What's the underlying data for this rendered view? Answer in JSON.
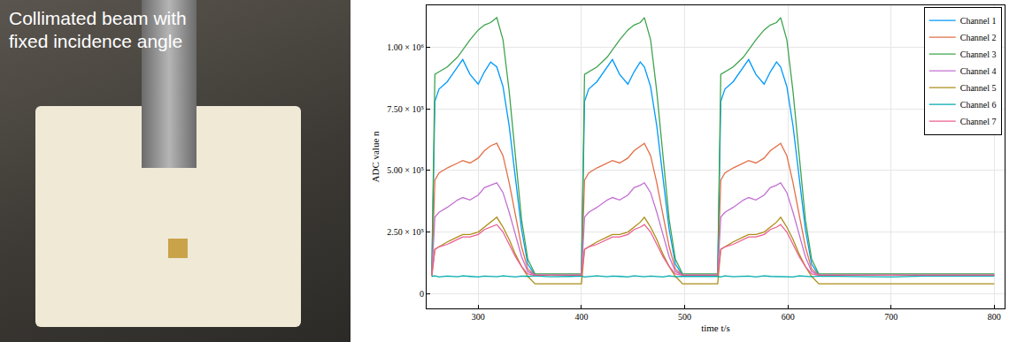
{
  "photo": {
    "caption": "Collimated beam with fixed incidence angle"
  },
  "chart_data": {
    "type": "line",
    "xlabel": "time t/s",
    "ylabel": "ADC value n",
    "xlim": [
      250,
      810
    ],
    "ylim": [
      -60000,
      1170000
    ],
    "xticks": [
      300,
      400,
      500,
      600,
      700,
      800
    ],
    "yticks": [
      0,
      {
        "value": 250000,
        "label": "2.50 × 10⁵"
      },
      {
        "value": 500000,
        "label": "5.00 × 10⁵"
      },
      {
        "value": 750000,
        "label": "7.50 × 10⁵"
      },
      {
        "value": 1000000,
        "label": "1.00 × 10⁶"
      }
    ],
    "grid": true,
    "legend": "top right",
    "x": [
      255,
      258,
      262,
      270,
      280,
      285,
      292,
      300,
      306,
      312,
      318,
      324,
      330,
      336,
      342,
      348,
      355,
      370,
      390,
      400,
      403,
      407,
      415,
      425,
      430,
      437,
      445,
      451,
      457,
      461,
      467,
      473,
      479,
      485,
      491,
      498,
      515,
      532,
      535,
      539,
      547,
      557,
      562,
      569,
      577,
      583,
      589,
      593,
      599,
      605,
      611,
      617,
      623,
      630,
      660,
      700,
      740,
      780,
      800
    ],
    "series": [
      {
        "name": "Channel 1",
        "color": "#009AFA",
        "values": [
          75000,
          780000,
          830000,
          860000,
          920000,
          950000,
          890000,
          850000,
          900000,
          940000,
          920000,
          840000,
          680000,
          460000,
          260000,
          120000,
          75000,
          75000,
          75000,
          75000,
          780000,
          830000,
          860000,
          920000,
          950000,
          890000,
          850000,
          900000,
          940000,
          920000,
          840000,
          680000,
          460000,
          260000,
          120000,
          75000,
          75000,
          75000,
          780000,
          830000,
          860000,
          920000,
          950000,
          890000,
          850000,
          900000,
          940000,
          920000,
          840000,
          680000,
          460000,
          260000,
          120000,
          75000,
          75000,
          75000,
          75000,
          75000,
          75000
        ]
      },
      {
        "name": "Channel 2",
        "color": "#E36F47",
        "values": [
          75000,
          460000,
          490000,
          510000,
          530000,
          540000,
          530000,
          550000,
          580000,
          600000,
          610000,
          560000,
          450000,
          320000,
          190000,
          100000,
          75000,
          75000,
          75000,
          75000,
          460000,
          490000,
          510000,
          530000,
          540000,
          530000,
          550000,
          580000,
          600000,
          610000,
          560000,
          450000,
          320000,
          190000,
          100000,
          75000,
          75000,
          75000,
          460000,
          490000,
          510000,
          530000,
          540000,
          530000,
          550000,
          580000,
          600000,
          610000,
          560000,
          450000,
          320000,
          190000,
          100000,
          75000,
          75000,
          75000,
          75000,
          75000,
          75000
        ]
      },
      {
        "name": "Channel 3",
        "color": "#3EA44E",
        "values": [
          80000,
          890000,
          900000,
          920000,
          960000,
          990000,
          1030000,
          1070000,
          1090000,
          1100000,
          1120000,
          1030000,
          820000,
          560000,
          300000,
          140000,
          80000,
          80000,
          80000,
          80000,
          890000,
          900000,
          920000,
          960000,
          990000,
          1030000,
          1070000,
          1090000,
          1100000,
          1120000,
          1030000,
          820000,
          560000,
          300000,
          140000,
          80000,
          80000,
          80000,
          890000,
          900000,
          920000,
          960000,
          990000,
          1030000,
          1070000,
          1090000,
          1100000,
          1120000,
          1030000,
          820000,
          560000,
          300000,
          140000,
          80000,
          80000,
          80000,
          80000,
          80000,
          80000
        ]
      },
      {
        "name": "Channel 4",
        "color": "#C371D2",
        "values": [
          75000,
          310000,
          330000,
          350000,
          380000,
          390000,
          380000,
          400000,
          430000,
          440000,
          450000,
          410000,
          330000,
          240000,
          150000,
          90000,
          75000,
          75000,
          75000,
          75000,
          310000,
          330000,
          350000,
          380000,
          390000,
          380000,
          400000,
          430000,
          440000,
          450000,
          410000,
          330000,
          240000,
          150000,
          90000,
          75000,
          75000,
          75000,
          310000,
          330000,
          350000,
          380000,
          390000,
          380000,
          400000,
          430000,
          440000,
          450000,
          410000,
          330000,
          240000,
          150000,
          90000,
          75000,
          75000,
          75000,
          75000,
          75000,
          75000
        ]
      },
      {
        "name": "Channel 5",
        "color": "#AC8E18",
        "values": [
          70000,
          180000,
          190000,
          210000,
          230000,
          240000,
          240000,
          250000,
          270000,
          290000,
          310000,
          270000,
          220000,
          160000,
          110000,
          70000,
          40000,
          40000,
          40000,
          40000,
          180000,
          190000,
          210000,
          230000,
          240000,
          240000,
          250000,
          270000,
          290000,
          310000,
          270000,
          220000,
          160000,
          110000,
          70000,
          40000,
          40000,
          40000,
          180000,
          190000,
          210000,
          230000,
          240000,
          240000,
          250000,
          270000,
          290000,
          310000,
          270000,
          220000,
          160000,
          110000,
          70000,
          40000,
          40000,
          40000,
          40000,
          40000,
          40000
        ]
      },
      {
        "name": "Channel 6",
        "color": "#00AAAE",
        "values": [
          70000,
          72000,
          68000,
          71000,
          69000,
          72000,
          70000,
          68000,
          71000,
          70000,
          69000,
          72000,
          70000,
          68000,
          71000,
          70000,
          72000,
          69000,
          70000,
          71000,
          68000,
          70000,
          72000,
          69000,
          71000,
          70000,
          68000,
          72000,
          70000,
          69000,
          71000,
          70000,
          68000,
          72000,
          69000,
          70000,
          71000,
          70000,
          68000,
          72000,
          69000,
          70000,
          71000,
          68000,
          72000,
          70000,
          69000,
          71000,
          70000,
          68000,
          72000,
          70000,
          69000,
          71000,
          70000,
          68000,
          72000,
          70000,
          71000
        ]
      },
      {
        "name": "Channel 7",
        "color": "#ED5E93",
        "values": [
          75000,
          180000,
          190000,
          200000,
          220000,
          230000,
          230000,
          240000,
          260000,
          270000,
          280000,
          250000,
          200000,
          150000,
          110000,
          80000,
          75000,
          75000,
          75000,
          75000,
          180000,
          190000,
          200000,
          220000,
          230000,
          230000,
          240000,
          260000,
          270000,
          280000,
          250000,
          200000,
          150000,
          110000,
          80000,
          75000,
          75000,
          75000,
          180000,
          190000,
          200000,
          220000,
          230000,
          230000,
          240000,
          260000,
          270000,
          280000,
          250000,
          200000,
          150000,
          110000,
          80000,
          75000,
          75000,
          75000,
          75000,
          75000,
          75000
        ]
      }
    ]
  }
}
